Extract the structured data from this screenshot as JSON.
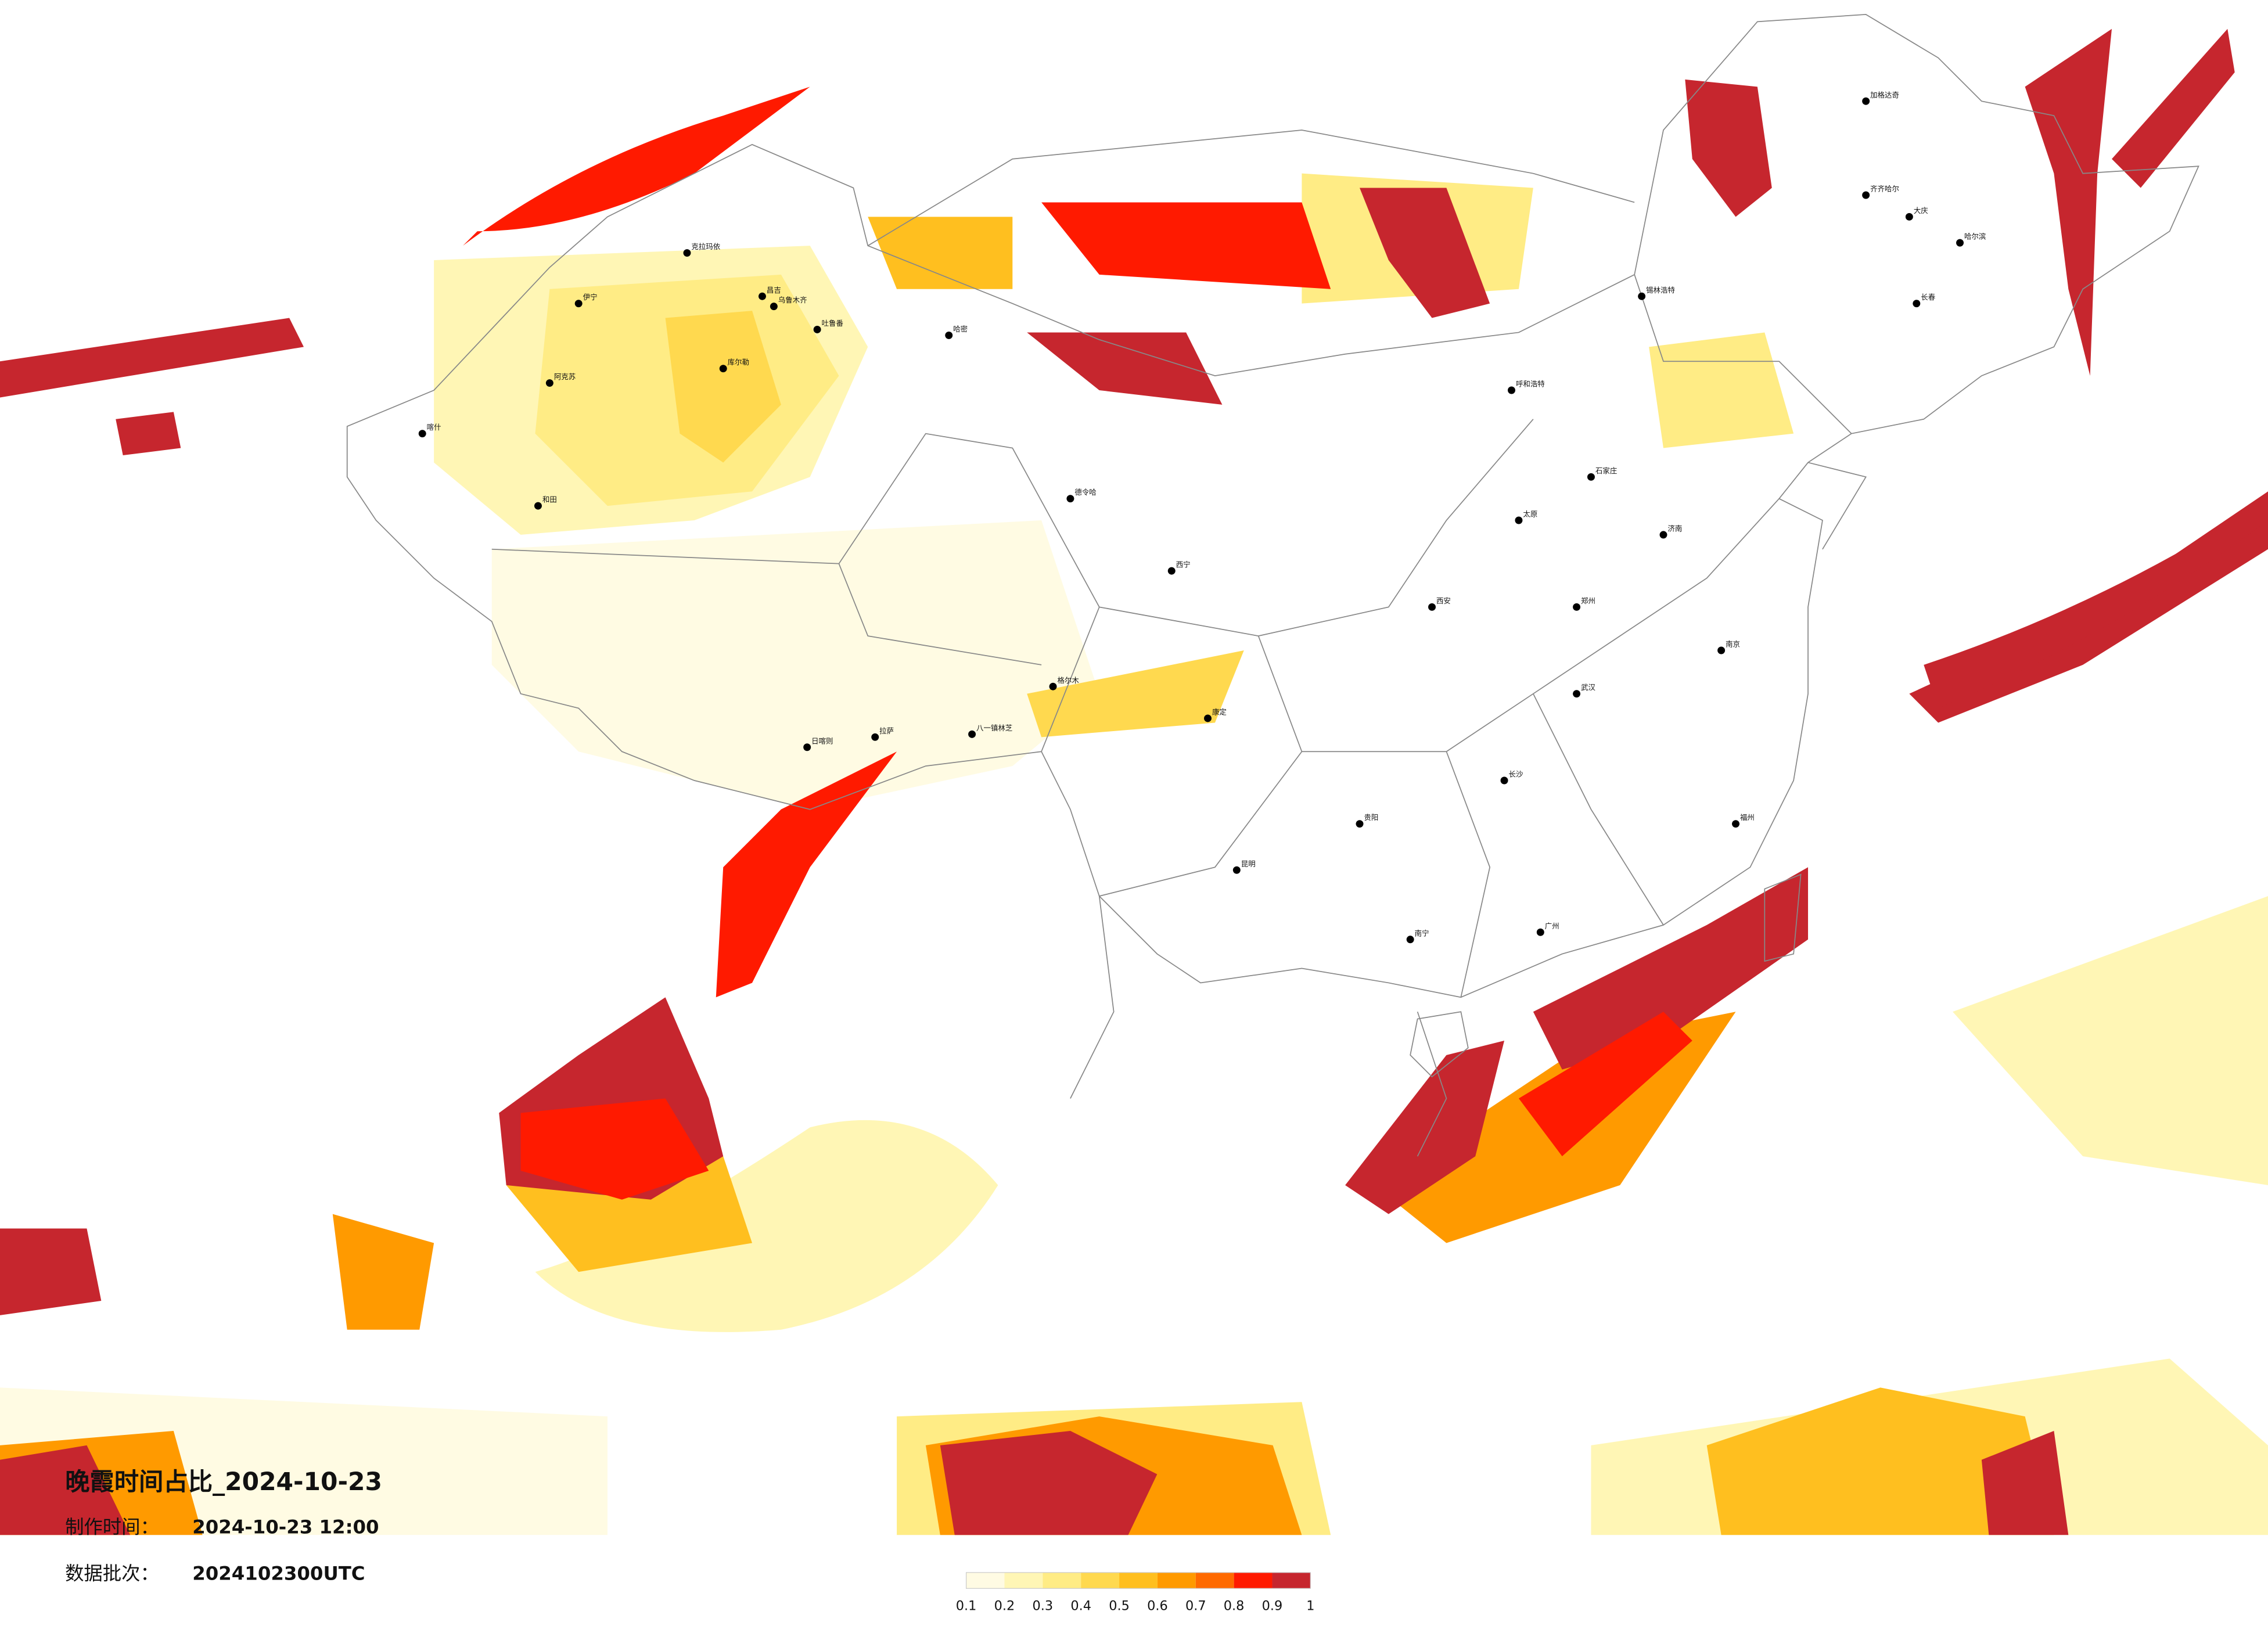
{
  "header": {
    "title": "晚霞时间占比_2024-10-23",
    "made_time_label": "制作时间：",
    "made_time": "2024-10-23 12:00",
    "batch_label": "数据批次：",
    "batch": "2024102300UTC"
  },
  "colorbar": {
    "ticks": [
      0.1,
      0.2,
      0.3,
      0.4,
      0.5,
      0.6,
      0.7,
      0.8,
      0.9,
      1
    ],
    "colors": [
      "#fffbe3",
      "#fff6b5",
      "#ffec85",
      "#ffd94f",
      "#ffbf1f",
      "#ff9a00",
      "#ff6a00",
      "#ff1a00",
      "#c6262e"
    ]
  },
  "cities": [
    "克拉玛依",
    "伊宁",
    "阿克苏",
    "喀什",
    "和田",
    "昌吉",
    "乌鲁木齐",
    "吐鲁番",
    "库尔勒",
    "哈密",
    "格尔木",
    "德令哈",
    "西宁",
    "日喀则",
    "拉萨",
    "八一镇林芝",
    "康定",
    "昆明",
    "贵阳",
    "南宁",
    "广州",
    "长沙",
    "武汉",
    "郑州",
    "西安",
    "太原",
    "石家庄",
    "呼和浩特",
    "锡林浩特",
    "加格达奇",
    "齐齐哈尔",
    "大庆",
    "哈尔滨",
    "长春",
    "济南",
    "南京",
    "福州"
  ]
}
